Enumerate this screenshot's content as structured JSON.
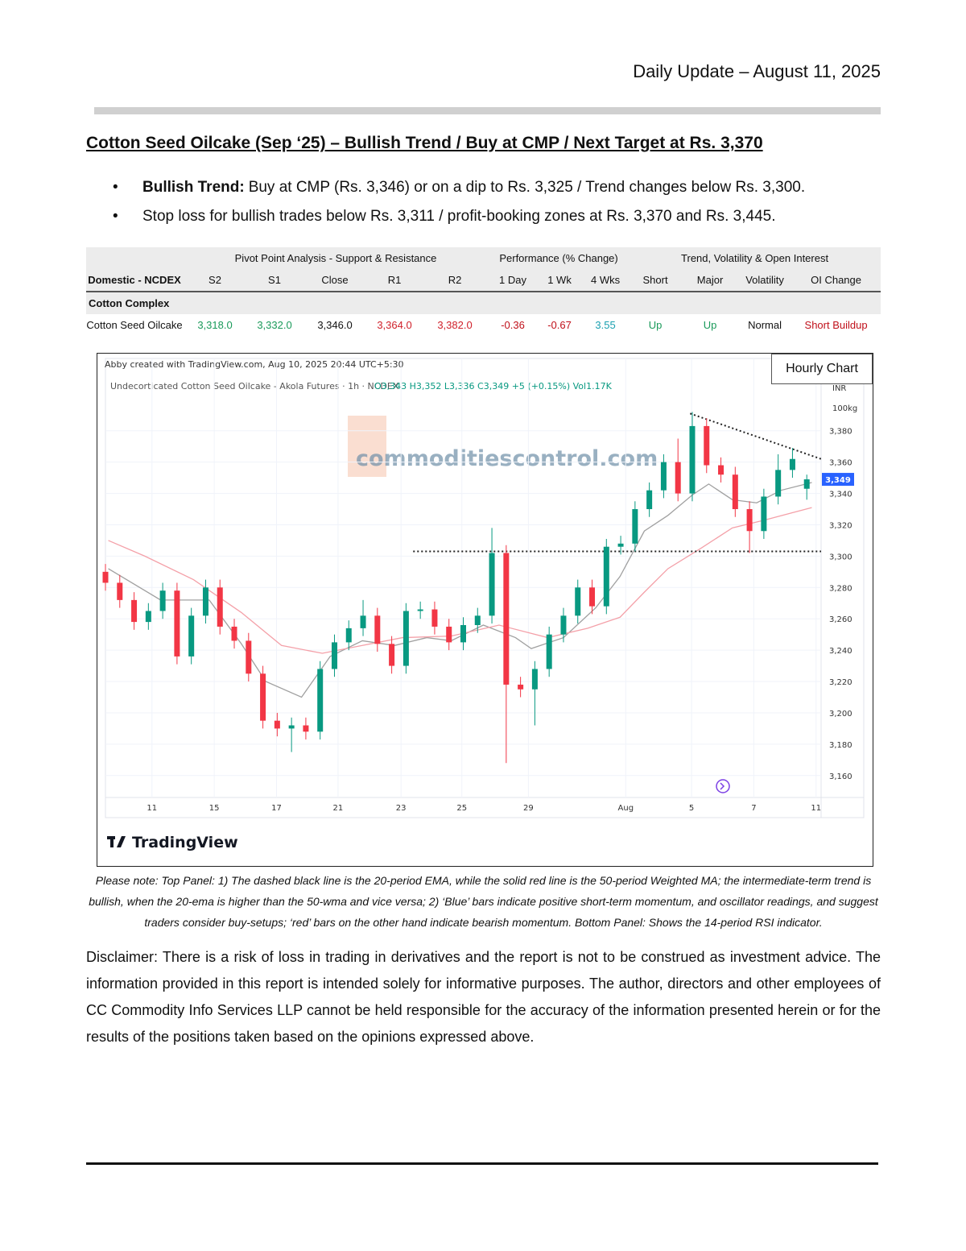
{
  "header": {
    "date": "Daily Update – August 11, 2025"
  },
  "title": "Cotton Seed Oilcake (Sep ‘25) – Bullish Trend / Buy at CMP / Next Target at Rs. 3,370",
  "bullets": [
    {
      "bold": "Bullish Trend:",
      "text": "Buy at CMP (Rs. 3,346) or on a dip to Rs. 3,325 / Trend changes below Rs. 3,300."
    },
    {
      "text": "Stop loss for bullish trades below Rs. 3,311 / profit-booking zones at Rs. 3,370 and Rs. 3,445."
    }
  ],
  "table": {
    "groups": [
      "Pivot Point Analysis - Support & Resistance",
      "Performance (% Change)",
      "Trend, Volatility & Open Interest"
    ],
    "columns": [
      "Domestic - NCDEX",
      "S2",
      "S1",
      "Close",
      "R1",
      "R2",
      "1 Day",
      "1 Wk",
      "4 Wks",
      "Short",
      "Major",
      "Volatility",
      "OI Change"
    ],
    "section": "Cotton Complex",
    "row": [
      "Cotton Seed Oilcake",
      "3,318.0",
      "3,332.0",
      "3,346.0",
      "3,364.0",
      "3,382.0",
      "-0.36",
      "-0.67",
      "3.55",
      "Up",
      "Up",
      "Normal",
      "Short Buildup"
    ],
    "row_colors": [
      "#111111",
      "#1a9a5a",
      "#1a9a5a",
      "#111111",
      "#d0202a",
      "#d0202a",
      "#c0101a",
      "#c0101a",
      "#1aa0b0",
      "#1a9a5a",
      "#1a9a5a",
      "#111111",
      "#c0101a"
    ]
  },
  "chart_label": "Hourly Chart",
  "chart_data": {
    "type": "candlestick",
    "credit": "Abby created with TradingView.com, Aug 10, 2025 20:44 UTC+5:30",
    "symbol": "Undecorticated Cotton Seed Oilcake - Akola Futures · 1h · NCDEX",
    "ohlc_legend": "O3,343 H3,352 L3,336 C3,349 +5 (+0.15%) Vol1.17K",
    "currency": "INR",
    "unit": "100kg",
    "watermark": "commoditiescontrol.com",
    "brand": "TradingView",
    "up_color": "#089981",
    "down_color": "#f23645",
    "xlim": [
      0,
      100
    ],
    "ylim": [
      3146,
      3403
    ],
    "xticks": [
      {
        "value": 6.5,
        "label": "11"
      },
      {
        "value": 15.2,
        "label": "15"
      },
      {
        "value": 23.9,
        "label": "17"
      },
      {
        "value": 32.5,
        "label": "21"
      },
      {
        "value": 41.3,
        "label": "23"
      },
      {
        "value": 49.8,
        "label": "25"
      },
      {
        "value": 59.1,
        "label": "29"
      },
      {
        "value": 72.7,
        "label": "Aug"
      },
      {
        "value": 81.9,
        "label": "5"
      },
      {
        "value": 90.6,
        "label": "7"
      },
      {
        "value": 99.3,
        "label": "11"
      }
    ],
    "yticks": [
      {
        "value": 3160,
        "label": "3,160"
      },
      {
        "value": 3180,
        "label": "3,180"
      },
      {
        "value": 3200,
        "label": "3,200"
      },
      {
        "value": 3220,
        "label": "3,220"
      },
      {
        "value": 3240,
        "label": "3,240"
      },
      {
        "value": 3260,
        "label": "3,260"
      },
      {
        "value": 3280,
        "label": "3,280"
      },
      {
        "value": 3300,
        "label": "3,300"
      },
      {
        "value": 3320,
        "label": "3,320"
      },
      {
        "value": 3340,
        "label": "3,340"
      },
      {
        "value": 3360,
        "label": "3,360"
      },
      {
        "value": 3380,
        "label": "3,380"
      }
    ],
    "grid": true,
    "x": [
      0,
      2,
      4,
      6,
      8,
      10,
      12,
      14,
      16,
      18,
      20,
      22,
      24,
      26,
      28,
      30,
      32,
      34,
      36,
      38,
      40,
      42,
      44,
      46,
      48,
      50,
      52,
      54,
      56,
      58,
      60,
      62,
      64,
      66,
      68,
      70,
      72,
      74,
      76,
      78,
      80,
      82,
      84,
      86,
      88,
      90,
      92,
      94,
      96,
      98
    ],
    "open": [
      3290,
      3283,
      3272,
      3258,
      3265,
      3278,
      3236,
      3262,
      3280,
      3255,
      3246,
      3225,
      3195,
      3190,
      3192,
      3188,
      3228,
      3245,
      3254,
      3262,
      3244,
      3230,
      3265,
      3266,
      3255,
      3245,
      3256,
      3262,
      3302,
      3218,
      3215,
      3228,
      3250,
      3262,
      3280,
      3268,
      3306,
      3308,
      3330,
      3342,
      3360,
      3340,
      3383,
      3358,
      3352,
      3330,
      3316,
      3338,
      3355,
      3343
    ],
    "high": [
      3295,
      3288,
      3277,
      3270,
      3283,
      3283,
      3267,
      3285,
      3285,
      3260,
      3251,
      3230,
      3200,
      3197,
      3197,
      3233,
      3250,
      3259,
      3272,
      3267,
      3249,
      3270,
      3271,
      3271,
      3260,
      3261,
      3267,
      3318,
      3307,
      3223,
      3233,
      3255,
      3267,
      3285,
      3285,
      3311,
      3313,
      3335,
      3347,
      3365,
      3375,
      3392,
      3388,
      3363,
      3357,
      3335,
      3343,
      3365,
      3369,
      3352
    ],
    "low": [
      3278,
      3267,
      3253,
      3253,
      3260,
      3231,
      3231,
      3257,
      3250,
      3241,
      3220,
      3190,
      3185,
      3175,
      3183,
      3183,
      3223,
      3240,
      3249,
      3239,
      3225,
      3225,
      3260,
      3250,
      3240,
      3240,
      3251,
      3257,
      3168,
      3210,
      3192,
      3223,
      3245,
      3257,
      3263,
      3263,
      3301,
      3303,
      3325,
      3337,
      3335,
      3335,
      3353,
      3347,
      3325,
      3302,
      3311,
      3333,
      3350,
      3336
    ],
    "close": [
      3283,
      3272,
      3258,
      3265,
      3278,
      3236,
      3262,
      3280,
      3255,
      3246,
      3225,
      3195,
      3190,
      3192,
      3188,
      3228,
      3245,
      3254,
      3262,
      3244,
      3230,
      3265,
      3266,
      3255,
      3245,
      3256,
      3262,
      3302,
      3218,
      3215,
      3228,
      3250,
      3262,
      3280,
      3268,
      3306,
      3308,
      3330,
      3342,
      3360,
      3340,
      3383,
      3358,
      3352,
      3330,
      3316,
      3338,
      3355,
      3362,
      3349
    ],
    "last_price": {
      "value": 3349,
      "label": "3,349"
    },
    "lines": [
      {
        "color": "#a0a0a0",
        "x": [
          0.4,
          7.7,
          14.5,
          19.0,
          22.4,
          27.4,
          31.4,
          35.9,
          40.4,
          44.9,
          48.3,
          52.8,
          57.3,
          59.5,
          64.0,
          68.5,
          71.9,
          75.3,
          78.6,
          82.0,
          84.3,
          87.6,
          91.0,
          94.4,
          98.7
        ],
        "values": [
          3292,
          3272,
          3272,
          3244,
          3220,
          3210,
          3236,
          3246,
          3243,
          3248,
          3246,
          3256,
          3248,
          3241,
          3248,
          3267,
          3287,
          3316,
          3326,
          3339,
          3346,
          3336,
          3334,
          3342,
          3347
        ]
      },
      {
        "color": "#f4a0a8",
        "x": [
          0.4,
          5.5,
          12.3,
          19.0,
          24.6,
          30.3,
          35.9,
          41.5,
          48.3,
          55.0,
          61.8,
          67.4,
          71.9,
          75.3,
          78.6,
          83.2,
          87.6,
          92.1,
          98.7
        ],
        "values": [
          3310,
          3300,
          3285,
          3264,
          3243,
          3238,
          3243,
          3248,
          3249,
          3256,
          3248,
          3254,
          3261,
          3277,
          3292,
          3305,
          3318,
          3323,
          3331
        ]
      }
    ],
    "dotted_lines": [
      {
        "x": [
          43,
          100
        ],
        "values": [
          3303,
          3303
        ]
      },
      {
        "x": [
          81.7,
          100
        ],
        "values": [
          3391,
          3362
        ]
      }
    ]
  },
  "note": "Please note: Top Panel: 1) The dashed black line is the 20-period EMA, while the solid red line is the 50-period Weighted MA; the intermediate-term trend is bullish, when the 20-ema is higher than the 50-wma and vice versa; 2) ‘Blue’ bars indicate positive short-term momentum, and oscillator readings, and suggest traders consider buy-setups; ‘red’ bars on the other hand indicate bearish momentum. Bottom Panel: Shows the 14-period RSI indicator.",
  "disclaimer": "Disclaimer: There is a risk of loss in trading in derivatives and the report is not to be construed as investment advice. The information provided in this report is intended solely for informative purposes. The author, directors and other employees of CC Commodity Info Services LLP cannot be held responsible for the accuracy of the information presented herein or for the results of the positions taken based on the opinions expressed above."
}
